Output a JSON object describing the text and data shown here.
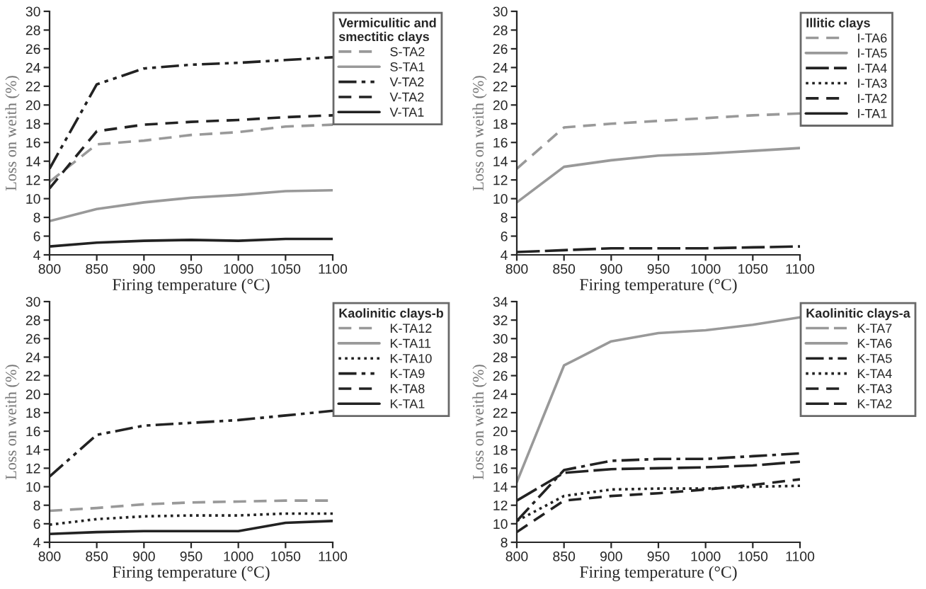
{
  "chart_data": [
    {
      "type": "line",
      "legend_title": "Vermiculitic and\nsmectitic clays",
      "xlabel": "Firing temperature (°C)",
      "ylabel": "Loss on weith (%)",
      "x": [
        800,
        850,
        900,
        950,
        1000,
        1050,
        1100
      ],
      "xlim": [
        800,
        1100
      ],
      "xticks": [
        800,
        850,
        900,
        950,
        1000,
        1050,
        1100
      ],
      "ylim": [
        4,
        30
      ],
      "yticks": [
        4,
        6,
        8,
        10,
        12,
        14,
        16,
        18,
        20,
        22,
        24,
        26,
        28,
        30
      ],
      "grid": false,
      "legend": "top right",
      "series": [
        {
          "name": "S-TA2",
          "color": "#999999",
          "line_style": "dashed",
          "values": [
            11.8,
            15.8,
            16.2,
            16.8,
            17.1,
            17.7,
            17.9
          ]
        },
        {
          "name": "S-TA1",
          "color": "#999999",
          "line_style": "solid",
          "values": [
            7.6,
            8.9,
            9.6,
            10.1,
            10.4,
            10.8,
            10.9
          ]
        },
        {
          "name": "V-TA2",
          "color": "#222222",
          "line_style": "dashdotdot",
          "values": [
            13.2,
            22.2,
            23.9,
            24.3,
            24.5,
            24.8,
            25.1
          ]
        },
        {
          "name": "V-TA2",
          "color": "#222222",
          "line_style": "dashed",
          "values": [
            11.1,
            17.2,
            17.9,
            18.2,
            18.4,
            18.7,
            18.9
          ]
        },
        {
          "name": "V-TA1",
          "color": "#222222",
          "line_style": "solid",
          "values": [
            4.9,
            5.3,
            5.5,
            5.6,
            5.5,
            5.7,
            5.7
          ]
        }
      ]
    },
    {
      "type": "line",
      "legend_title": "Illitic clays",
      "xlabel": "Firing temperature (°C)",
      "ylabel": "Loss on weith (%)",
      "x": [
        800,
        850,
        900,
        950,
        1000,
        1050,
        1100
      ],
      "xlim": [
        800,
        1100
      ],
      "xticks": [
        800,
        850,
        900,
        950,
        1000,
        1050,
        1100
      ],
      "ylim": [
        4,
        30
      ],
      "yticks": [
        4,
        6,
        8,
        10,
        12,
        14,
        16,
        18,
        20,
        22,
        24,
        26,
        28,
        30
      ],
      "grid": false,
      "legend": "top right",
      "series": [
        {
          "name": "I-TA6",
          "color": "#999999",
          "line_style": "dashed",
          "values": [
            13.2,
            17.6,
            18.0,
            18.3,
            18.6,
            18.9,
            19.1
          ]
        },
        {
          "name": "I-TA5",
          "color": "#999999",
          "line_style": "solid",
          "values": [
            9.6,
            13.4,
            14.1,
            14.6,
            14.8,
            15.1,
            15.4
          ]
        },
        {
          "name": "I-TA4",
          "color": "#222222",
          "line_style": "longdash",
          "values": [
            4.3,
            4.5,
            4.7,
            4.7,
            4.7,
            4.8,
            4.9
          ]
        },
        {
          "name": "I-TA3",
          "color": "#222222",
          "line_style": "dotted",
          "values": [
            null,
            null,
            null,
            null,
            null,
            null,
            null
          ]
        },
        {
          "name": "I-TA2",
          "color": "#222222",
          "line_style": "dashed",
          "values": [
            null,
            null,
            null,
            null,
            null,
            null,
            null
          ]
        },
        {
          "name": "I-TA1",
          "color": "#222222",
          "line_style": "solid",
          "values": [
            null,
            null,
            null,
            null,
            null,
            null,
            null
          ]
        }
      ]
    },
    {
      "type": "line",
      "legend_title": "Kaolinitic clays-b",
      "xlabel": "Firing temperature (°C)",
      "ylabel": "Loss on weith (%)",
      "x": [
        800,
        850,
        900,
        950,
        1000,
        1050,
        1100
      ],
      "xlim": [
        800,
        1100
      ],
      "xticks": [
        800,
        850,
        900,
        950,
        1000,
        1050,
        1100
      ],
      "ylim": [
        4,
        30
      ],
      "yticks": [
        4,
        6,
        8,
        10,
        12,
        14,
        16,
        18,
        20,
        22,
        24,
        26,
        28,
        30
      ],
      "grid": false,
      "legend": "top right",
      "series": [
        {
          "name": "K-TA12",
          "color": "#999999",
          "line_style": "dashed",
          "values": [
            7.4,
            7.7,
            8.1,
            8.3,
            8.4,
            8.5,
            8.5
          ]
        },
        {
          "name": "K-TA11",
          "color": "#999999",
          "line_style": "solid",
          "values": [
            null,
            null,
            null,
            null,
            null,
            null,
            null
          ]
        },
        {
          "name": "K-TA10",
          "color": "#222222",
          "line_style": "dotted",
          "values": [
            5.9,
            6.5,
            6.8,
            6.9,
            6.9,
            7.1,
            7.1
          ]
        },
        {
          "name": "K-TA9",
          "color": "#222222",
          "line_style": "dashdotdot",
          "values": [
            11.1,
            15.6,
            16.6,
            16.9,
            17.2,
            17.7,
            18.2
          ]
        },
        {
          "name": "K-TA8",
          "color": "#222222",
          "line_style": "dashed",
          "values": [
            null,
            null,
            null,
            null,
            null,
            null,
            null
          ]
        },
        {
          "name": "K-TA1",
          "color": "#222222",
          "line_style": "solid",
          "values": [
            4.9,
            5.1,
            5.2,
            5.2,
            5.2,
            6.1,
            6.3
          ]
        }
      ]
    },
    {
      "type": "line",
      "legend_title": "Kaolinitic clays-a",
      "xlabel": "Firing temperature (°C)",
      "ylabel": "Loss on weith (%)",
      "x": [
        800,
        850,
        900,
        950,
        1000,
        1050,
        1100
      ],
      "xlim": [
        800,
        1100
      ],
      "xticks": [
        800,
        850,
        900,
        950,
        1000,
        1050,
        1100
      ],
      "ylim": [
        8,
        34
      ],
      "yticks": [
        8,
        10,
        12,
        14,
        16,
        18,
        20,
        22,
        24,
        26,
        28,
        30,
        32,
        34
      ],
      "grid": false,
      "legend": "top right",
      "series": [
        {
          "name": "K-TA7",
          "color": "#999999",
          "line_style": "longdash",
          "values": [
            null,
            null,
            null,
            null,
            null,
            null,
            null
          ]
        },
        {
          "name": "K-TA6",
          "color": "#999999",
          "line_style": "solid",
          "values": [
            14.5,
            27.1,
            29.7,
            30.6,
            30.9,
            31.5,
            32.3
          ]
        },
        {
          "name": "K-TA5",
          "color": "#222222",
          "line_style": "dashdot",
          "values": [
            10.3,
            15.8,
            16.8,
            17.0,
            17.0,
            17.3,
            17.6
          ]
        },
        {
          "name": "K-TA4",
          "color": "#222222",
          "line_style": "dotted",
          "values": [
            10.3,
            13.0,
            13.7,
            13.8,
            13.8,
            14.0,
            14.1
          ]
        },
        {
          "name": "K-TA3",
          "color": "#222222",
          "line_style": "dashed",
          "values": [
            9.1,
            12.5,
            13.0,
            13.3,
            13.7,
            14.2,
            14.8
          ]
        },
        {
          "name": "K-TA2",
          "color": "#222222",
          "line_style": "longdash",
          "values": [
            12.5,
            15.5,
            15.9,
            16.0,
            16.1,
            16.3,
            16.7
          ]
        }
      ]
    }
  ]
}
